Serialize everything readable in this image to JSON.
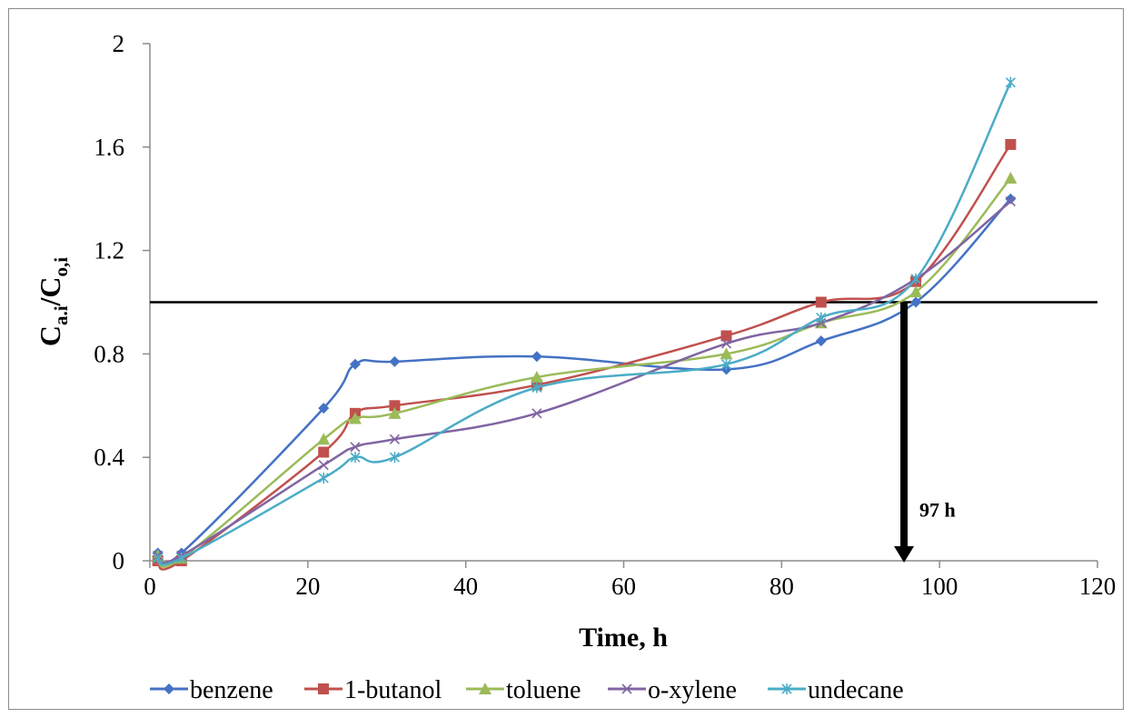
{
  "chart_data": {
    "type": "line",
    "title": "",
    "xlabel": "Time, h",
    "ylabel": {
      "main1": "C",
      "sub1": "a.i",
      "slash": "/",
      "main2": "C",
      "sub2": "o,i"
    },
    "xlim": [
      0,
      120
    ],
    "ylim": [
      0,
      2
    ],
    "xticks": [
      0,
      20,
      40,
      60,
      80,
      100,
      120
    ],
    "yticks": [
      "0",
      "0.4",
      "0.8",
      "1.2",
      "1.6",
      "2"
    ],
    "gridlines": false,
    "legend_position": "bottom",
    "threshold_line": {
      "y": 1.0,
      "color": "#000000"
    },
    "annotation": {
      "text": "97 h",
      "x": 95.5,
      "y_from": 1.0,
      "y_to": 0
    },
    "series": [
      {
        "name": "benzene",
        "color": "#4472C4",
        "marker": "diamond",
        "x": [
          1,
          4,
          22,
          26,
          31,
          49,
          73,
          85,
          97,
          109
        ],
        "y": [
          0.03,
          0.03,
          0.59,
          0.76,
          0.77,
          0.79,
          0.74,
          0.85,
          1.0,
          1.4
        ]
      },
      {
        "name": "1-butanol",
        "color": "#C0504D",
        "marker": "square",
        "x": [
          1,
          4,
          22,
          26,
          31,
          49,
          73,
          85,
          97,
          109
        ],
        "y": [
          0.0,
          0.0,
          0.42,
          0.57,
          0.6,
          0.68,
          0.87,
          1.0,
          1.08,
          1.61
        ]
      },
      {
        "name": "toluene",
        "color": "#9BBB59",
        "marker": "triangle",
        "x": [
          1,
          4,
          22,
          26,
          31,
          49,
          73,
          85,
          97,
          109
        ],
        "y": [
          0.02,
          0.01,
          0.47,
          0.55,
          0.57,
          0.71,
          0.8,
          0.92,
          1.04,
          1.48
        ]
      },
      {
        "name": "o-xylene",
        "color": "#8064A2",
        "marker": "x",
        "x": [
          1,
          4,
          22,
          26,
          31,
          49,
          73,
          85,
          97,
          109
        ],
        "y": [
          0.02,
          0.02,
          0.37,
          0.44,
          0.47,
          0.57,
          0.84,
          0.92,
          1.09,
          1.39
        ]
      },
      {
        "name": "undecane",
        "color": "#4BACC6",
        "marker": "star",
        "x": [
          1,
          4,
          22,
          26,
          31,
          49,
          73,
          85,
          97,
          109
        ],
        "y": [
          0.01,
          0.01,
          0.32,
          0.4,
          0.4,
          0.67,
          0.76,
          0.94,
          1.09,
          1.85
        ]
      }
    ]
  }
}
